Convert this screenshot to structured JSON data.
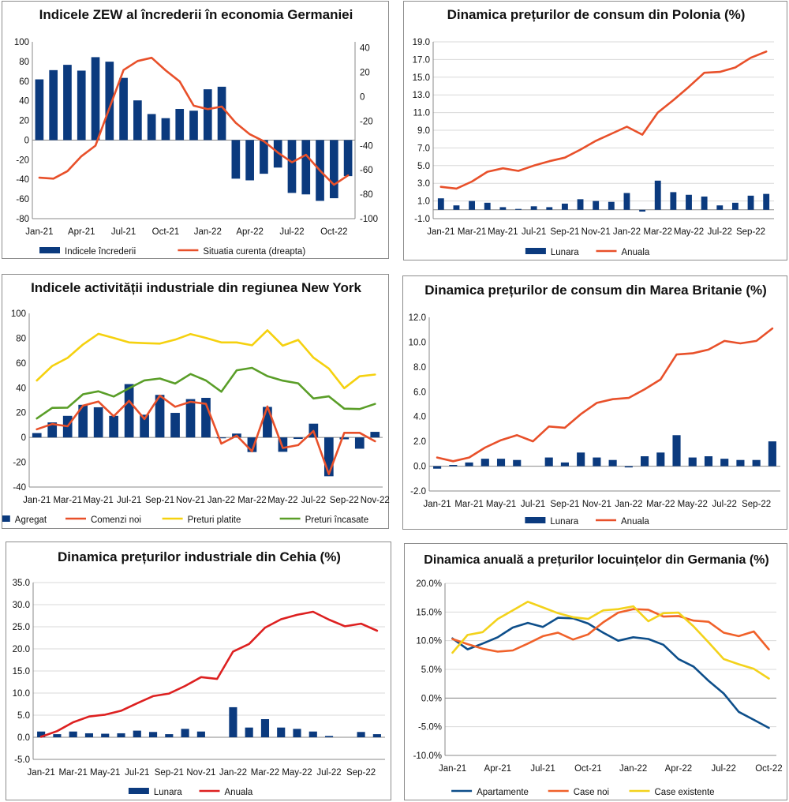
{
  "chart_data": [
    {
      "type": "bar+line",
      "title": "Indicele ZEW al încrederii în economia Germaniei",
      "x": [
        "Jan-21",
        "Feb-21",
        "Mar-21",
        "Apr-21",
        "May-21",
        "Jun-21",
        "Jul-21",
        "Aug-21",
        "Sep-21",
        "Oct-21",
        "Nov-21",
        "Dec-21",
        "Jan-22",
        "Feb-22",
        "Mar-22",
        "Apr-22",
        "May-22",
        "Jun-22",
        "Jul-22",
        "Aug-22",
        "Sep-22",
        "Oct-22",
        "Nov-22"
      ],
      "xticks": [
        "Jan-21",
        "Apr-21",
        "Jul-21",
        "Oct-21",
        "Jan-22",
        "Apr-22",
        "Jul-22",
        "Oct-22"
      ],
      "yticks_left": [
        "-80",
        "-60",
        "-40",
        "-20",
        "0",
        "20",
        "40",
        "60",
        "80",
        "100"
      ],
      "yticks_right": [
        "-100",
        "-80",
        "-60",
        "-40",
        "-20",
        "0",
        "20",
        "40"
      ],
      "ylim_left": [
        -80,
        100
      ],
      "ylim_right": [
        -100,
        45
      ],
      "series": [
        {
          "name": "Indicele încrederii",
          "kind": "bar",
          "axis": "left",
          "color": "#0b3a7e",
          "values": [
            61.8,
            71.2,
            76.6,
            70.7,
            84.4,
            79.8,
            63.3,
            40.4,
            26.5,
            22.3,
            31.7,
            29.9,
            51.7,
            54.3,
            -39.3,
            -41,
            -34.3,
            -28,
            -53.8,
            -55.3,
            -61.9,
            -59.2,
            -36.7
          ]
        },
        {
          "name": "Situatia curenta (dreapta)",
          "kind": "line",
          "axis": "right",
          "color": "#e8502a",
          "values": [
            -66.4,
            -67.2,
            -61,
            -48.8,
            -40.1,
            -9.1,
            21.9,
            29.3,
            31.9,
            21.6,
            12.5,
            -7.4,
            -10.2,
            -8.1,
            -21.4,
            -30.8,
            -36.5,
            -45.8,
            -53.8,
            -47.6,
            -60.5,
            -72.2,
            -64.5
          ]
        }
      ]
    },
    {
      "type": "bar+line",
      "title": "Dinamica prețurilor de consum din Polonia (%)",
      "x": [
        "Jan-21",
        "Feb-21",
        "Mar-21",
        "Apr-21",
        "May-21",
        "Jun-21",
        "Jul-21",
        "Aug-21",
        "Sep-21",
        "Oct-21",
        "Nov-21",
        "Dec-21",
        "Jan-22",
        "Feb-22",
        "Mar-22",
        "Apr-22",
        "May-22",
        "Jun-22",
        "Jul-22",
        "Aug-22",
        "Sep-22",
        "Oct-22"
      ],
      "xticks": [
        "Jan-21",
        "Mar-21",
        "May-21",
        "Jul-21",
        "Sep-21",
        "Nov-21",
        "Jan-22",
        "Mar-22",
        "May-22",
        "Jul-22",
        "Sep-22"
      ],
      "yticks_left": [
        "-1.0",
        "1.0",
        "3.0",
        "5.0",
        "7.0",
        "9.0",
        "11.0",
        "13.0",
        "15.0",
        "17.0",
        "19.0"
      ],
      "ylim_left": [
        -1,
        19
      ],
      "series": [
        {
          "name": "Lunara",
          "kind": "bar",
          "color": "#0b3a7e",
          "values": [
            1.3,
            0.5,
            1.0,
            0.8,
            0.3,
            0.1,
            0.4,
            0.3,
            0.7,
            1.2,
            1.0,
            0.9,
            1.9,
            -0.2,
            3.3,
            2.0,
            1.7,
            1.5,
            0.5,
            0.8,
            1.6,
            1.8
          ]
        },
        {
          "name": "Anuala",
          "kind": "line",
          "color": "#e8502a",
          "values": [
            2.6,
            2.4,
            3.2,
            4.3,
            4.7,
            4.4,
            5.0,
            5.5,
            5.9,
            6.8,
            7.8,
            8.6,
            9.4,
            8.5,
            11.0,
            12.4,
            13.9,
            15.5,
            15.6,
            16.1,
            17.2,
            17.9
          ]
        }
      ]
    },
    {
      "type": "bar+line",
      "title": "Indicele activității industriale din regiunea New York",
      "x": [
        "Jan-21",
        "Feb-21",
        "Mar-21",
        "Apr-21",
        "May-21",
        "Jun-21",
        "Jul-21",
        "Aug-21",
        "Sep-21",
        "Oct-21",
        "Nov-21",
        "Dec-21",
        "Jan-22",
        "Feb-22",
        "Mar-22",
        "Apr-22",
        "May-22",
        "Jun-22",
        "Jul-22",
        "Aug-22",
        "Sep-22",
        "Oct-22",
        "Nov-22"
      ],
      "xticks": [
        "Jan-21",
        "Mar-21",
        "May-21",
        "Jul-21",
        "Sep-21",
        "Nov-21",
        "Jan-22",
        "Mar-22",
        "May-22",
        "Jul-22",
        "Sep-22",
        "Nov-22"
      ],
      "yticks_left": [
        "-40",
        "-20",
        "0",
        "20",
        "40",
        "60",
        "80",
        "100"
      ],
      "ylim_left": [
        -40,
        100
      ],
      "series": [
        {
          "name": "Agregat",
          "kind": "bar",
          "color": "#0b3a7e",
          "values": [
            3.5,
            12.1,
            17.4,
            26.3,
            24.3,
            17.4,
            43,
            18.3,
            34.3,
            19.8,
            30.9,
            31.9,
            -0.7,
            3.1,
            -11.8,
            24.6,
            -11.6,
            -1.2,
            11.1,
            -31.3,
            -1.5,
            -9.1,
            4.5
          ]
        },
        {
          "name": "Comenzi noi",
          "kind": "line",
          "color": "#e8502a",
          "values": [
            6.6,
            10.8,
            9,
            25.6,
            28.9,
            17.1,
            29.5,
            14.8,
            33.7,
            24.7,
            28.7,
            27.1,
            -5,
            1.4,
            -11.2,
            25,
            -8.5,
            -6.2,
            5.2,
            -29.6,
            3.7,
            3.7,
            -3.1
          ]
        },
        {
          "name": "Preturi platite",
          "kind": "line",
          "color": "#f5d10f",
          "values": [
            45.9,
            57.6,
            64.1,
            74.9,
            83.5,
            80.2,
            76.6,
            76,
            75.6,
            78.8,
            83.3,
            80.2,
            76.6,
            76.6,
            74.3,
            86.4,
            74,
            78.6,
            64.3,
            55.5,
            39.7,
            49.3,
            50.7
          ]
        },
        {
          "name": "Preturi încasate",
          "kind": "line",
          "color": "#5a9e28",
          "values": [
            15.3,
            23.8,
            24,
            34.8,
            37.2,
            33,
            39.7,
            46,
            47.5,
            43.4,
            51.1,
            45.9,
            36.9,
            54.1,
            56.1,
            49.4,
            45.8,
            43.6,
            31.4,
            33.1,
            23.2,
            22.9,
            27
          ]
        }
      ]
    },
    {
      "type": "bar+line",
      "title": "Dinamica prețurilor de consum din Marea Britanie (%)",
      "x": [
        "Jan-21",
        "Feb-21",
        "Mar-21",
        "Apr-21",
        "May-21",
        "Jun-21",
        "Jul-21",
        "Aug-21",
        "Sep-21",
        "Oct-21",
        "Nov-21",
        "Dec-21",
        "Jan-22",
        "Feb-22",
        "Mar-22",
        "Apr-22",
        "May-22",
        "Jun-22",
        "Jul-22",
        "Aug-22",
        "Sep-22",
        "Oct-22"
      ],
      "xticks": [
        "Jan-21",
        "Mar-21",
        "May-21",
        "Jul-21",
        "Sep-21",
        "Nov-21",
        "Jan-22",
        "Mar-22",
        "May-22",
        "Jul-22",
        "Sep-22"
      ],
      "yticks_left": [
        "-2.0",
        "0.0",
        "2.0",
        "4.0",
        "6.0",
        "8.0",
        "10.0",
        "12.0"
      ],
      "ylim_left": [
        -2,
        12
      ],
      "series": [
        {
          "name": "Lunara",
          "kind": "bar",
          "color": "#0b3a7e",
          "values": [
            -0.2,
            0.1,
            0.3,
            0.6,
            0.6,
            0.5,
            0.0,
            0.7,
            0.3,
            1.1,
            0.7,
            0.5,
            -0.1,
            0.8,
            1.1,
            2.5,
            0.7,
            0.8,
            0.6,
            0.5,
            0.5,
            2.0
          ]
        },
        {
          "name": "Anuala",
          "kind": "line",
          "color": "#e8502a",
          "values": [
            0.7,
            0.4,
            0.7,
            1.5,
            2.1,
            2.5,
            2.0,
            3.2,
            3.1,
            4.2,
            5.1,
            5.4,
            5.5,
            6.2,
            7.0,
            9.0,
            9.1,
            9.4,
            10.1,
            9.9,
            10.1,
            11.1
          ]
        }
      ]
    },
    {
      "type": "bar+line",
      "title": "Dinamica prețurilor industriale din Cehia (%)",
      "x": [
        "Jan-21",
        "Feb-21",
        "Mar-21",
        "Apr-21",
        "May-21",
        "Jun-21",
        "Jul-21",
        "Aug-21",
        "Sep-21",
        "Oct-21",
        "Nov-21",
        "Dec-21",
        "Jan-22",
        "Feb-22",
        "Mar-22",
        "Apr-22",
        "May-22",
        "Jun-22",
        "Jul-22",
        "Aug-22",
        "Sep-22",
        "Oct-22"
      ],
      "xticks": [
        "Jan-21",
        "Mar-21",
        "May-21",
        "Jul-21",
        "Sep-21",
        "Nov-21",
        "Jan-22",
        "Mar-22",
        "May-22",
        "Jul-22",
        "Sep-22"
      ],
      "yticks_left": [
        "-5.0",
        "0.0",
        "5.0",
        "10.0",
        "15.0",
        "20.0",
        "25.0",
        "30.0",
        "35.0"
      ],
      "ylim_left": [
        -5,
        35
      ],
      "series": [
        {
          "name": "Lunara",
          "kind": "bar",
          "color": "#0b3a7e",
          "values": [
            1.3,
            0.7,
            1.3,
            0.9,
            0.8,
            0.9,
            1.5,
            1.2,
            0.7,
            1.9,
            1.3,
            0.0,
            6.8,
            2.2,
            4.1,
            2.2,
            1.9,
            1.3,
            0.3,
            0.0,
            1.2,
            0.7
          ]
        },
        {
          "name": "Anuala",
          "kind": "line",
          "color": "#dd2020",
          "values": [
            0.1,
            1.4,
            3.4,
            4.7,
            5.1,
            6.0,
            7.7,
            9.3,
            9.9,
            11.6,
            13.6,
            13.2,
            19.4,
            21.1,
            24.8,
            26.7,
            27.7,
            28.4,
            26.6,
            25.1,
            25.7,
            24.1
          ]
        }
      ]
    },
    {
      "type": "line",
      "title": "Dinamica anuală a prețurilor locuințelor din Germania (%)",
      "x": [
        "Jan-21",
        "Feb-21",
        "Mar-21",
        "Apr-21",
        "May-21",
        "Jun-21",
        "Jul-21",
        "Aug-21",
        "Sep-21",
        "Oct-21",
        "Nov-21",
        "Dec-21",
        "Jan-22",
        "Feb-22",
        "Mar-22",
        "Apr-22",
        "May-22",
        "Jun-22",
        "Jul-22",
        "Aug-22",
        "Sep-22",
        "Oct-22"
      ],
      "xticks": [
        "Jan-21",
        "Apr-21",
        "Jul-21",
        "Oct-21",
        "Jan-22",
        "Apr-22",
        "Jul-22",
        "Oct-22"
      ],
      "yticks_left": [
        "-10.0%",
        "-5.0%",
        "0.0%",
        "5.0%",
        "10.0%",
        "15.0%",
        "20.0%"
      ],
      "ylim_left": [
        -10,
        20
      ],
      "series": [
        {
          "name": "Apartamente",
          "kind": "line",
          "color": "#0d4e8a",
          "values": [
            10.4,
            8.5,
            9.5,
            10.6,
            12.3,
            13.1,
            12.4,
            14.0,
            13.9,
            13.0,
            11.4,
            10.0,
            10.6,
            10.3,
            9.3,
            6.8,
            5.5,
            3.0,
            0.8,
            -2.4,
            -3.8,
            -5.2
          ]
        },
        {
          "name": "Case noi",
          "kind": "line",
          "color": "#f0612a",
          "values": [
            10.3,
            9.4,
            8.6,
            8.1,
            8.3,
            9.5,
            10.8,
            11.4,
            10.2,
            11.1,
            13.2,
            14.9,
            15.5,
            15.4,
            14.2,
            14.3,
            13.5,
            13.3,
            11.4,
            10.8,
            11.6,
            8.5
          ]
        },
        {
          "name": "Case existente",
          "kind": "line",
          "color": "#f3d21b",
          "values": [
            7.9,
            11.0,
            11.5,
            13.8,
            15.3,
            16.8,
            15.8,
            14.8,
            14.1,
            13.8,
            15.3,
            15.5,
            16.0,
            13.4,
            14.8,
            14.9,
            12.5,
            9.7,
            6.8,
            5.9,
            5.1,
            3.4
          ]
        }
      ]
    }
  ]
}
